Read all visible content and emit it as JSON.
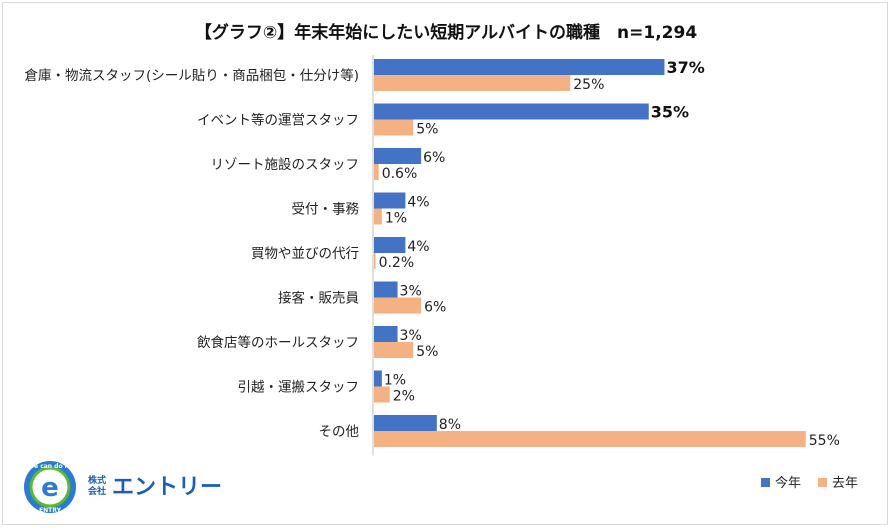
{
  "chart_data": {
    "type": "bar",
    "orientation": "horizontal",
    "title": "【グラフ②】年末年始にしたい短期アルバイトの職種　n=1,294",
    "categories": [
      "倉庫・物流スタッフ(シール貼り・商品梱包・仕分け等)",
      "イベント等の運営スタッフ",
      "リゾート施設のスタッフ",
      "受付・事務",
      "買物や並びの代行",
      "接客・販売員",
      "飲食店等のホールスタッフ",
      "引越・運搬スタッフ",
      "その他"
    ],
    "series": [
      {
        "name": "今年",
        "color": "#4472c4",
        "values": [
          37,
          35,
          6,
          4,
          4,
          3,
          3,
          1,
          8
        ],
        "labels": [
          "37%",
          "35%",
          "6%",
          "4%",
          "4%",
          "3%",
          "3%",
          "1%",
          "8%"
        ],
        "bold": [
          true,
          true,
          false,
          false,
          false,
          false,
          false,
          false,
          false
        ]
      },
      {
        "name": "去年",
        "color": "#f4b183",
        "values": [
          25,
          5,
          0.6,
          1,
          0.2,
          6,
          5,
          2,
          55
        ],
        "labels": [
          "25%",
          "5%",
          "0.6%",
          "1%",
          "0.2%",
          "6%",
          "5%",
          "2%",
          "55%"
        ],
        "bold": [
          false,
          false,
          false,
          false,
          false,
          false,
          false,
          false,
          false
        ]
      }
    ],
    "xlim": [
      0,
      55
    ],
    "grid": false,
    "legend": "bottom-right"
  },
  "logo": {
    "circle_letter": "e",
    "ring_top": "We can do it!",
    "ring_bottom": "ENTRY",
    "company_line1": "株式",
    "company_line2": "会社",
    "company_name": "エントリー"
  }
}
